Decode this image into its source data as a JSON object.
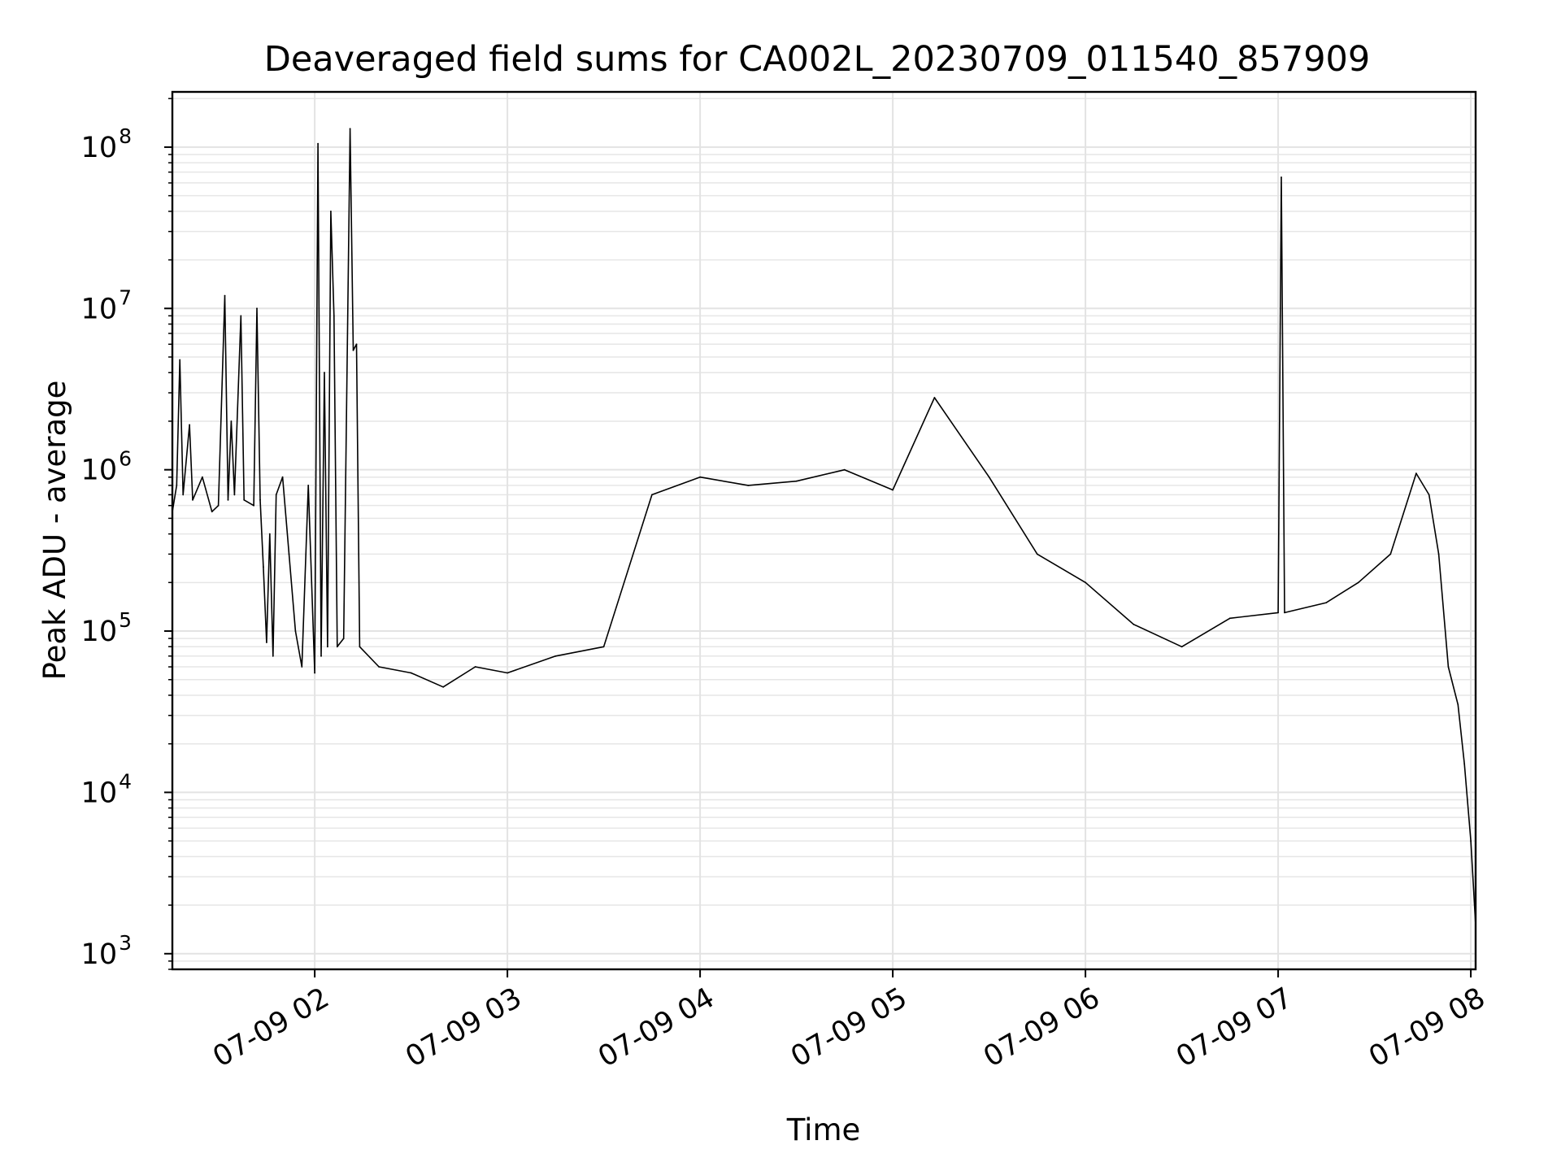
{
  "chart_data": {
    "type": "line",
    "title": "Deaveraged field sums for CA002L_20230709_011540_857909",
    "xlabel": "Time",
    "ylabel": "Peak ADU - average",
    "x_scale": "time",
    "y_scale": "log",
    "xlim": [
      "2023-07-09 01:15:40",
      "2023-07-09 08:01:30"
    ],
    "ylim": [
      800,
      220000000
    ],
    "x_ticks": [
      {
        "t": "2023-07-09 02:00",
        "label": "07-09 02"
      },
      {
        "t": "2023-07-09 03:00",
        "label": "07-09 03"
      },
      {
        "t": "2023-07-09 04:00",
        "label": "07-09 04"
      },
      {
        "t": "2023-07-09 05:00",
        "label": "07-09 05"
      },
      {
        "t": "2023-07-09 06:00",
        "label": "07-09 06"
      },
      {
        "t": "2023-07-09 07:00",
        "label": "07-09 07"
      },
      {
        "t": "2023-07-09 08:00",
        "label": "07-09 08"
      }
    ],
    "y_ticks": [
      {
        "value": 1000,
        "base": "10",
        "exp": "3"
      },
      {
        "value": 10000,
        "base": "10",
        "exp": "4"
      },
      {
        "value": 100000,
        "base": "10",
        "exp": "5"
      },
      {
        "value": 1000000,
        "base": "10",
        "exp": "6"
      },
      {
        "value": 10000000,
        "base": "10",
        "exp": "7"
      },
      {
        "value": 100000000,
        "base": "10",
        "exp": "8"
      }
    ],
    "grid": true,
    "series": [
      {
        "color": "#000000",
        "points": [
          [
            "2023-07-09 01:15:40",
            550000
          ],
          [
            "2023-07-09 01:17:00",
            800000
          ],
          [
            "2023-07-09 01:18:00",
            4800000
          ],
          [
            "2023-07-09 01:19:00",
            700000
          ],
          [
            "2023-07-09 01:21:00",
            1900000
          ],
          [
            "2023-07-09 01:22:00",
            650000
          ],
          [
            "2023-07-09 01:25:00",
            900000
          ],
          [
            "2023-07-09 01:28:00",
            550000
          ],
          [
            "2023-07-09 01:30:00",
            600000
          ],
          [
            "2023-07-09 01:32:00",
            12000000
          ],
          [
            "2023-07-09 01:33:00",
            650000
          ],
          [
            "2023-07-09 01:34:00",
            2000000
          ],
          [
            "2023-07-09 01:35:00",
            700000
          ],
          [
            "2023-07-09 01:37:00",
            9000000
          ],
          [
            "2023-07-09 01:38:00",
            650000
          ],
          [
            "2023-07-09 01:41:00",
            600000
          ],
          [
            "2023-07-09 01:42:00",
            10000000
          ],
          [
            "2023-07-09 01:43:00",
            650000
          ],
          [
            "2023-07-09 01:44:00",
            250000
          ],
          [
            "2023-07-09 01:45:00",
            85000
          ],
          [
            "2023-07-09 01:46:00",
            400000
          ],
          [
            "2023-07-09 01:47:00",
            70000
          ],
          [
            "2023-07-09 01:48:00",
            700000
          ],
          [
            "2023-07-09 01:50:00",
            900000
          ],
          [
            "2023-07-09 01:52:00",
            300000
          ],
          [
            "2023-07-09 01:54:00",
            100000
          ],
          [
            "2023-07-09 01:56:00",
            60000
          ],
          [
            "2023-07-09 01:58:00",
            800000
          ],
          [
            "2023-07-09 02:00:00",
            55000
          ],
          [
            "2023-07-09 02:01:00",
            105000000
          ],
          [
            "2023-07-09 02:02:00",
            70000
          ],
          [
            "2023-07-09 02:03:00",
            4000000
          ],
          [
            "2023-07-09 02:04:00",
            80000
          ],
          [
            "2023-07-09 02:05:00",
            40000000
          ],
          [
            "2023-07-09 02:06:00",
            9000000
          ],
          [
            "2023-07-09 02:07:00",
            80000
          ],
          [
            "2023-07-09 02:09:00",
            90000
          ],
          [
            "2023-07-09 02:11:00",
            130000000
          ],
          [
            "2023-07-09 02:12:00",
            5500000
          ],
          [
            "2023-07-09 02:13:00",
            6000000
          ],
          [
            "2023-07-09 02:14:00",
            80000
          ],
          [
            "2023-07-09 02:20:00",
            60000
          ],
          [
            "2023-07-09 02:30:00",
            55000
          ],
          [
            "2023-07-09 02:40:00",
            45000
          ],
          [
            "2023-07-09 02:50:00",
            60000
          ],
          [
            "2023-07-09 03:00:00",
            55000
          ],
          [
            "2023-07-09 03:15:00",
            70000
          ],
          [
            "2023-07-09 03:30:00",
            80000
          ],
          [
            "2023-07-09 03:45:00",
            700000
          ],
          [
            "2023-07-09 04:00:00",
            900000
          ],
          [
            "2023-07-09 04:15:00",
            800000
          ],
          [
            "2023-07-09 04:30:00",
            850000
          ],
          [
            "2023-07-09 04:45:00",
            1000000
          ],
          [
            "2023-07-09 05:00:00",
            750000
          ],
          [
            "2023-07-09 05:13:00",
            2800000
          ],
          [
            "2023-07-09 05:30:00",
            900000
          ],
          [
            "2023-07-09 05:45:00",
            300000
          ],
          [
            "2023-07-09 06:00:00",
            200000
          ],
          [
            "2023-07-09 06:15:00",
            110000
          ],
          [
            "2023-07-09 06:30:00",
            80000
          ],
          [
            "2023-07-09 06:45:00",
            120000
          ],
          [
            "2023-07-09 07:00:00",
            130000
          ],
          [
            "2023-07-09 07:01:00",
            65000000
          ],
          [
            "2023-07-09 07:02:00",
            130000
          ],
          [
            "2023-07-09 07:15:00",
            150000
          ],
          [
            "2023-07-09 07:25:00",
            200000
          ],
          [
            "2023-07-09 07:35:00",
            300000
          ],
          [
            "2023-07-09 07:43:00",
            950000
          ],
          [
            "2023-07-09 07:47:00",
            700000
          ],
          [
            "2023-07-09 07:50:00",
            300000
          ],
          [
            "2023-07-09 07:53:00",
            60000
          ],
          [
            "2023-07-09 07:56:00",
            35000
          ],
          [
            "2023-07-09 07:58:00",
            15000
          ],
          [
            "2023-07-09 08:00:00",
            5000
          ],
          [
            "2023-07-09 08:01:30",
            1500
          ]
        ]
      }
    ]
  }
}
